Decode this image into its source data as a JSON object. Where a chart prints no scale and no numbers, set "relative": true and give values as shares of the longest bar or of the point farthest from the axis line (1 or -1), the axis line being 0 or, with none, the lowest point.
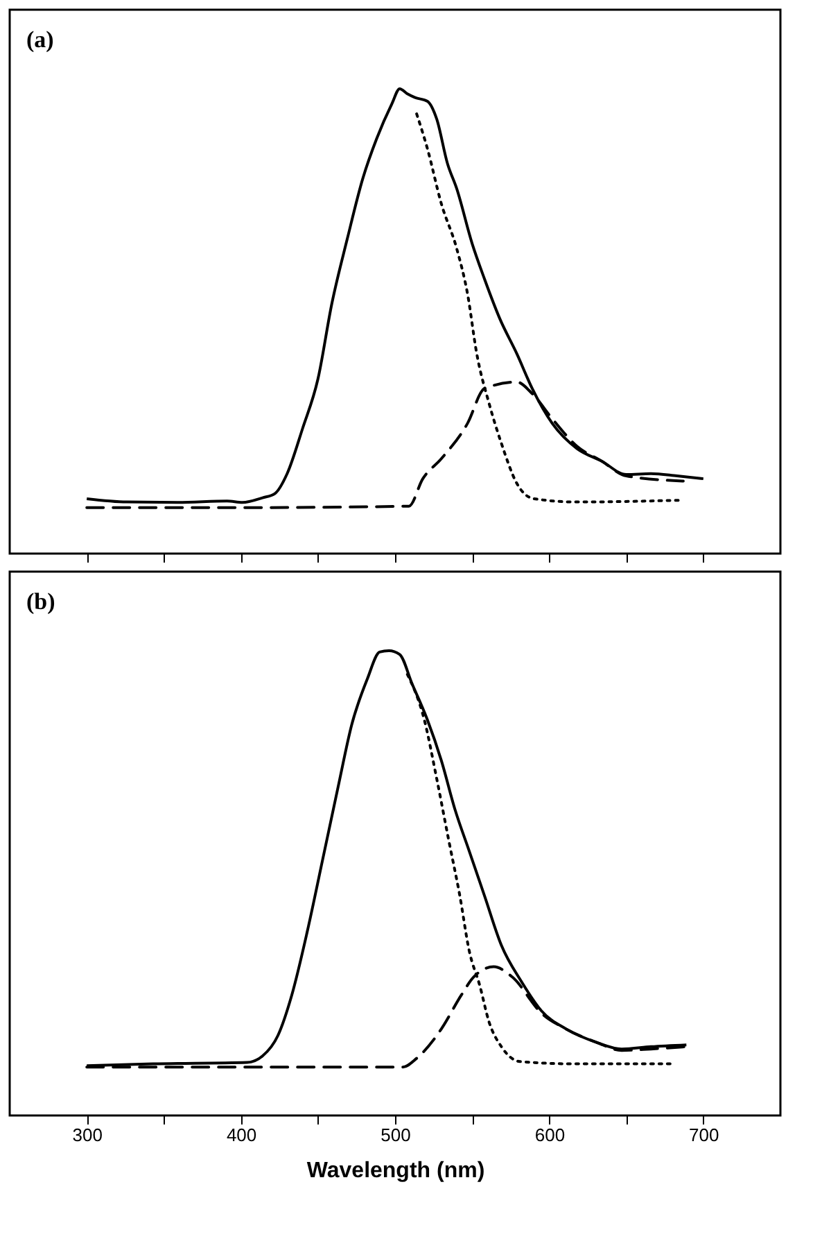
{
  "chart_data": [
    {
      "type": "line",
      "relative": true,
      "annotations": [
        "(a)"
      ],
      "xlim": [
        250,
        750
      ],
      "xticks": [
        {
          "value": 300,
          "label": null
        },
        {
          "value": 350,
          "label": null
        },
        {
          "value": 400,
          "label": null
        },
        {
          "value": 450,
          "label": null
        },
        {
          "value": 500,
          "label": null
        },
        {
          "value": 550,
          "label": null
        },
        {
          "value": 600,
          "label": null
        },
        {
          "value": 650,
          "label": null
        },
        {
          "value": 700,
          "label": null
        }
      ],
      "tick_labels": false,
      "series": [
        {
          "color": "#000000",
          "line_style": "solid",
          "x": [
            300,
            326,
            359,
            391,
            401,
            414,
            422,
            430,
            440,
            450,
            459,
            469,
            479,
            488,
            498,
            503,
            508,
            513,
            521,
            527,
            534,
            540,
            550,
            558,
            568,
            579,
            589,
            602,
            618,
            634,
            650,
            666,
            683,
            700
          ],
          "values": [
            0.118,
            0.111,
            0.11,
            0.113,
            0.11,
            0.12,
            0.129,
            0.172,
            0.269,
            0.376,
            0.538,
            0.677,
            0.806,
            0.892,
            0.968,
            1.0,
            0.989,
            0.981,
            0.973,
            0.935,
            0.839,
            0.785,
            0.667,
            0.591,
            0.505,
            0.43,
            0.355,
            0.28,
            0.226,
            0.199,
            0.17,
            0.172,
            0.167,
            0.161
          ]
        },
        {
          "color": "#000000",
          "line_style": "dotted",
          "x": [
            514,
            521,
            530,
            540,
            547,
            553,
            561,
            569,
            579,
            590,
            618,
            687
          ],
          "values": [
            0.946,
            0.871,
            0.753,
            0.656,
            0.559,
            0.43,
            0.323,
            0.237,
            0.151,
            0.118,
            0.111,
            0.115
          ]
        },
        {
          "color": "#000000",
          "line_style": "dashed",
          "x": [
            300,
            407,
            509,
            518,
            530,
            547,
            558,
            579,
            589,
            602,
            618,
            634,
            650,
            687
          ],
          "values": [
            0.099,
            0.099,
            0.102,
            0.161,
            0.204,
            0.28,
            0.355,
            0.369,
            0.344,
            0.29,
            0.231,
            0.199,
            0.167,
            0.156
          ]
        }
      ]
    },
    {
      "type": "line",
      "relative": true,
      "annotations": [
        "(b)"
      ],
      "xlabel": "Wavelength (nm)",
      "xlim": [
        250,
        750
      ],
      "xticks": [
        300,
        {
          "value": 350,
          "label": null
        },
        400,
        {
          "value": 450,
          "label": null
        },
        500,
        {
          "value": 550,
          "label": null
        },
        600,
        {
          "value": 650,
          "label": null
        },
        700
      ],
      "tick_labels": "x",
      "series": [
        {
          "color": "#000000",
          "line_style": "solid",
          "x": [
            300,
            343,
            404,
            414,
            424,
            433,
            443,
            453,
            463,
            472,
            482,
            490,
            496,
            503,
            511,
            521,
            530,
            539,
            548,
            558,
            569,
            582,
            595,
            611,
            631,
            647,
            666,
            689
          ],
          "values": [
            0.107,
            0.111,
            0.114,
            0.128,
            0.172,
            0.259,
            0.395,
            0.55,
            0.706,
            0.842,
            0.939,
            0.997,
            1.0,
            0.992,
            0.929,
            0.851,
            0.764,
            0.657,
            0.57,
            0.473,
            0.366,
            0.288,
            0.225,
            0.186,
            0.157,
            0.143,
            0.148,
            0.152
          ]
        },
        {
          "color": "#000000",
          "line_style": "dotted",
          "x": [
            508,
            519,
            527,
            535,
            542,
            548,
            555,
            561,
            569,
            581,
            618,
            679
          ],
          "values": [
            0.949,
            0.851,
            0.725,
            0.589,
            0.473,
            0.356,
            0.279,
            0.201,
            0.148,
            0.116,
            0.111,
            0.111
          ]
        },
        {
          "color": "#000000",
          "line_style": "dashed",
          "x": [
            300,
            407,
            505,
            514,
            530,
            543,
            551,
            564,
            576,
            595,
            611,
            631,
            647,
            666,
            689
          ],
          "values": [
            0.104,
            0.104,
            0.104,
            0.123,
            0.186,
            0.259,
            0.298,
            0.32,
            0.298,
            0.22,
            0.186,
            0.157,
            0.14,
            0.143,
            0.148
          ]
        }
      ]
    }
  ]
}
